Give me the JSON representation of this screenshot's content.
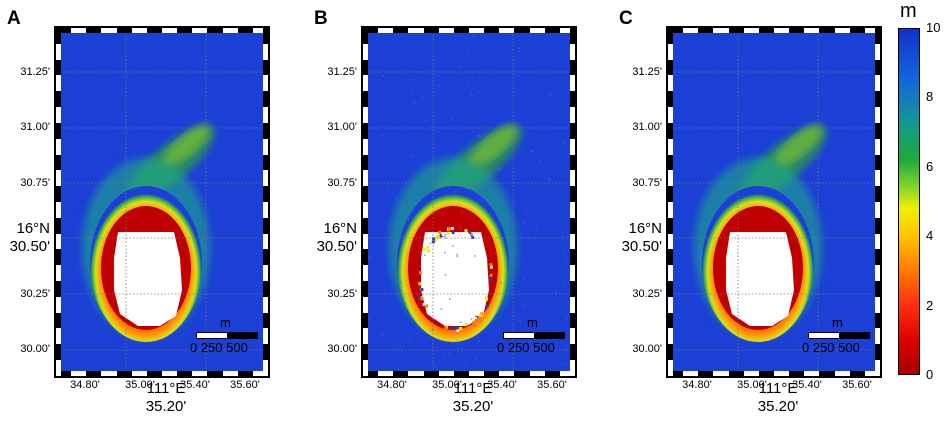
{
  "panels": [
    {
      "letter": "A",
      "variant": "a"
    },
    {
      "letter": "B",
      "variant": "b"
    },
    {
      "letter": "C",
      "variant": "c"
    }
  ],
  "axes": {
    "lat_ticks": [
      "31.25'",
      "31.00'",
      "30.75'",
      "30.25'",
      "30.00'"
    ],
    "lat_main_line1": "16°N",
    "lat_main_line2": "30.50'",
    "lon_ticks": [
      "34.80'",
      "35.00'",
      "35.40'",
      "35.60'"
    ],
    "lon_main_line1": "111°E",
    "lon_main_line2": "35.20'"
  },
  "scalebar": {
    "unit": "m",
    "labels": "0  250 500"
  },
  "colorbar": {
    "unit": "m",
    "ticks": [
      "10",
      "8",
      "6",
      "4",
      "2",
      "0"
    ],
    "min": 0,
    "max": 10
  },
  "colors": {
    "ocean": "#1c3fd6",
    "land": "#ffffff",
    "grid": "#777777"
  }
}
